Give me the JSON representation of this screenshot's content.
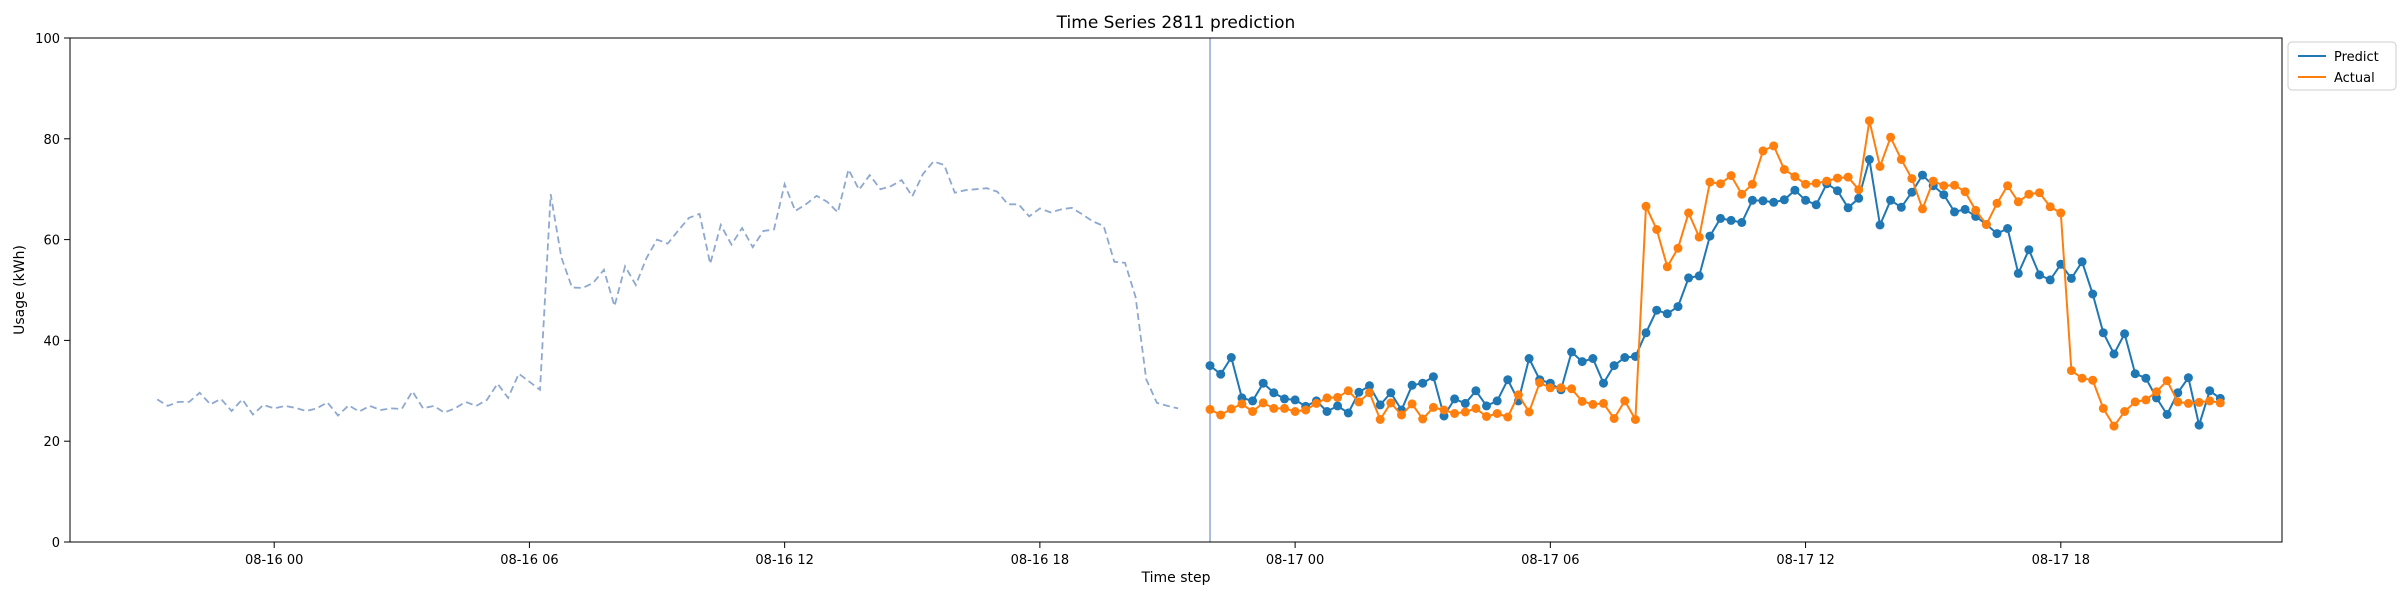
{
  "chart_data": {
    "type": "line",
    "title": "Time Series 2811 prediction",
    "xlabel": "Time step",
    "ylabel": "Usage (kWh)",
    "ylim": [
      0,
      100
    ],
    "yticks": [
      0,
      20,
      40,
      60,
      80,
      100
    ],
    "xlim": [
      "08-15 19:12",
      "08-17 23:12"
    ],
    "xticks": [
      {
        "t": "08-16 00:00",
        "label": "08-16 00"
      },
      {
        "t": "08-16 06:00",
        "label": "08-16 06"
      },
      {
        "t": "08-16 12:00",
        "label": "08-16 12"
      },
      {
        "t": "08-16 18:00",
        "label": "08-16 18"
      },
      {
        "t": "08-17 00:00",
        "label": "08-17 00"
      },
      {
        "t": "08-17 06:00",
        "label": "08-17 06"
      },
      {
        "t": "08-17 12:00",
        "label": "08-17 12"
      },
      {
        "t": "08-17 18:00",
        "label": "08-17 18"
      }
    ],
    "grid": false,
    "legend_position": "outside-top-right",
    "forecast_start": "08-16 22:00",
    "history": {
      "start": "08-15 21:15",
      "step_minutes": 15,
      "color": "#8fa8d0",
      "style": "dashed",
      "values": [
        28.3,
        27.0,
        27.8,
        27.8,
        29.6,
        27.3,
        28.4,
        26.0,
        28.3,
        25.3,
        27.2,
        26.5,
        27.0,
        26.6,
        26.0,
        26.5,
        27.7,
        25.1,
        27.1,
        25.9,
        27.0,
        26.2,
        26.5,
        26.4,
        29.9,
        26.5,
        27.0,
        25.7,
        26.5,
        27.8,
        27.0,
        28.2,
        31.4,
        28.6,
        33.4,
        31.8,
        30.2,
        69.0,
        56.5,
        50.5,
        50.4,
        51.4,
        54.0,
        46.8,
        54.7,
        51.0,
        56.3,
        60.0,
        59.2,
        61.8,
        64.3,
        65.1,
        55.2,
        62.9,
        59.0,
        62.3,
        58.5,
        61.7,
        62.0,
        71.0,
        65.7,
        67.0,
        68.7,
        67.5,
        65.4,
        73.9,
        69.9,
        72.8,
        70.0,
        70.6,
        71.8,
        68.6,
        73.0,
        75.5,
        74.8,
        69.3,
        69.8,
        70.0,
        70.2,
        69.5,
        67.0,
        67.0,
        64.6,
        66.2,
        65.4,
        66.0,
        66.3,
        65.0,
        63.6,
        62.7,
        55.6,
        55.4,
        48.6,
        32.3,
        27.6,
        27.0,
        26.5
      ]
    },
    "x_start": "08-16 22:00",
    "x_step_minutes": 15,
    "series": [
      {
        "name": "Predict",
        "color": "#1f77b4",
        "values": [
          35.0,
          33.3,
          36.6,
          28.6,
          28.0,
          31.5,
          29.6,
          28.4,
          28.2,
          26.9,
          28.0,
          25.9,
          27.0,
          25.6,
          29.7,
          31.0,
          27.2,
          29.6,
          26.2,
          31.1,
          31.5,
          32.8,
          25.0,
          28.4,
          27.5,
          30.0,
          27.0,
          28.0,
          32.2,
          28.0,
          36.4,
          32.2,
          31.5,
          30.2,
          37.7,
          35.8,
          36.4,
          31.5,
          35.0,
          36.6,
          36.8,
          41.5,
          46.0,
          45.3,
          46.7,
          52.4,
          52.8,
          60.7,
          64.2,
          63.8,
          63.4,
          67.8,
          67.7,
          67.4,
          67.9,
          69.8,
          67.8,
          66.9,
          71.1,
          69.7,
          66.3,
          68.2,
          75.9,
          62.9,
          67.8,
          66.4,
          69.4,
          72.8,
          70.7,
          68.9,
          65.5,
          66.0,
          64.6,
          63.0,
          61.2,
          62.2,
          53.3,
          58.0,
          53.0,
          52.0,
          55.1,
          52.3,
          55.6,
          49.2,
          41.5,
          37.3,
          41.3,
          33.4,
          32.5,
          28.6,
          25.3,
          29.6,
          32.6,
          23.2,
          30.0,
          28.5
        ]
      },
      {
        "name": "Actual",
        "color": "#ff7f0e",
        "values": [
          26.3,
          25.2,
          26.4,
          27.4,
          25.9,
          27.6,
          26.5,
          26.5,
          25.9,
          26.2,
          27.5,
          28.6,
          28.7,
          30.0,
          27.8,
          29.6,
          24.3,
          27.6,
          25.2,
          27.4,
          24.4,
          26.7,
          26.2,
          25.5,
          25.8,
          26.5,
          24.9,
          25.5,
          24.8,
          29.2,
          25.8,
          31.6,
          30.6,
          30.6,
          30.4,
          27.9,
          27.3,
          27.5,
          24.5,
          28.0,
          24.3,
          66.6,
          62.0,
          54.6,
          58.3,
          65.3,
          60.5,
          71.4,
          71.1,
          72.7,
          69.0,
          71.0,
          77.6,
          78.6,
          73.9,
          72.5,
          71.0,
          71.2,
          71.6,
          72.2,
          72.4,
          69.9,
          83.6,
          74.5,
          80.3,
          75.9,
          72.1,
          66.1,
          71.6,
          70.7,
          70.8,
          69.5,
          65.8,
          63.0,
          67.2,
          70.7,
          67.5,
          69.0,
          69.3,
          66.5,
          65.3,
          34.0,
          32.5,
          32.1,
          26.5,
          23.0,
          25.9,
          27.8,
          28.2,
          29.8,
          32.0,
          27.8,
          27.5,
          27.7,
          28.0,
          27.6
        ]
      }
    ]
  }
}
